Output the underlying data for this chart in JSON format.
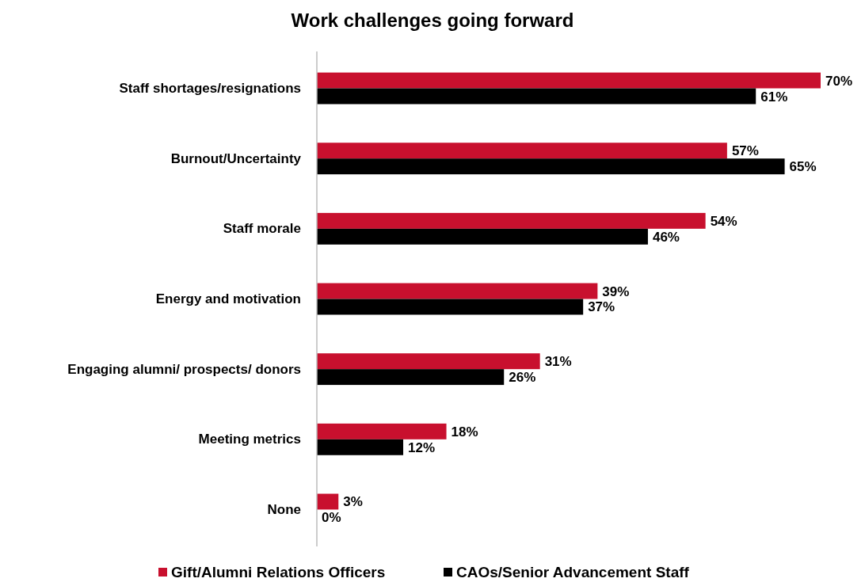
{
  "chart_data": {
    "type": "bar",
    "orientation": "horizontal",
    "title": "Work challenges going forward",
    "categories": [
      "Staff shortages/resignations",
      "Burnout/Uncertainty",
      "Staff morale",
      "Energy and motivation",
      "Engaging alumni/ prospects/ donors",
      "Meeting metrics",
      "None"
    ],
    "series": [
      {
        "name": "Gift/Alumni Relations Officers",
        "color": "#c8102e",
        "values": [
          70,
          57,
          54,
          39,
          31,
          18,
          3
        ],
        "value_labels": [
          "70%",
          "57%",
          "54%",
          "39%",
          "31%",
          "18%",
          "3%"
        ]
      },
      {
        "name": "CAOs/Senior Advancement Staff",
        "color": "#000000",
        "values": [
          61,
          65,
          46,
          37,
          26,
          12,
          0
        ],
        "value_labels": [
          "61%",
          "65%",
          "46%",
          "37%",
          "26%",
          "12%",
          "0%"
        ]
      }
    ],
    "legend": "bottom",
    "grid": false
  }
}
